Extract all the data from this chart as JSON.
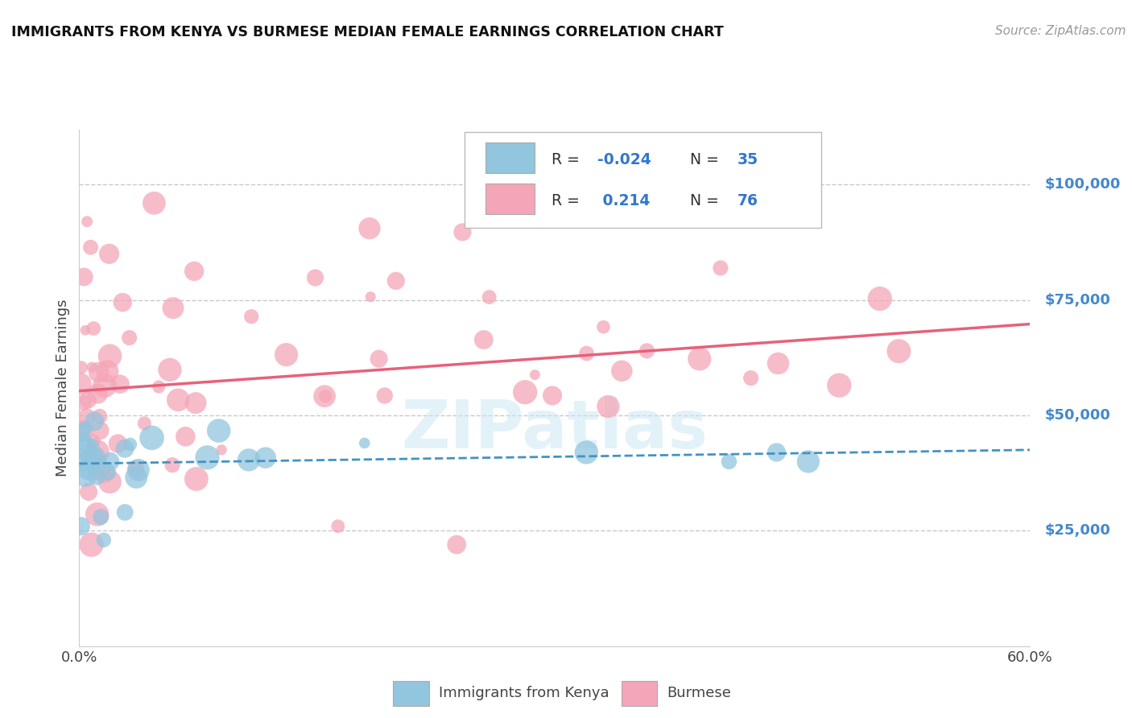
{
  "title": "IMMIGRANTS FROM KENYA VS BURMESE MEDIAN FEMALE EARNINGS CORRELATION CHART",
  "source": "Source: ZipAtlas.com",
  "ylabel": "Median Female Earnings",
  "ytick_values": [
    25000,
    50000,
    75000,
    100000
  ],
  "r_kenya": -0.024,
  "n_kenya": 35,
  "r_burmese": 0.214,
  "n_burmese": 76,
  "kenya_color": "#92c5de",
  "burmese_color": "#f4a6b8",
  "kenya_line_color": "#4393c3",
  "burmese_line_color": "#e8607a",
  "watermark": "ZIPatlas",
  "xlim": [
    0.0,
    0.6
  ],
  "ylim": [
    0,
    112000
  ],
  "background_color": "#ffffff",
  "grid_color": "#c8c8c8",
  "legend_kenya": "Immigrants from Kenya",
  "legend_burmese": "Burmese",
  "ytick_color": "#4488cc",
  "xtick_color": "#444444"
}
